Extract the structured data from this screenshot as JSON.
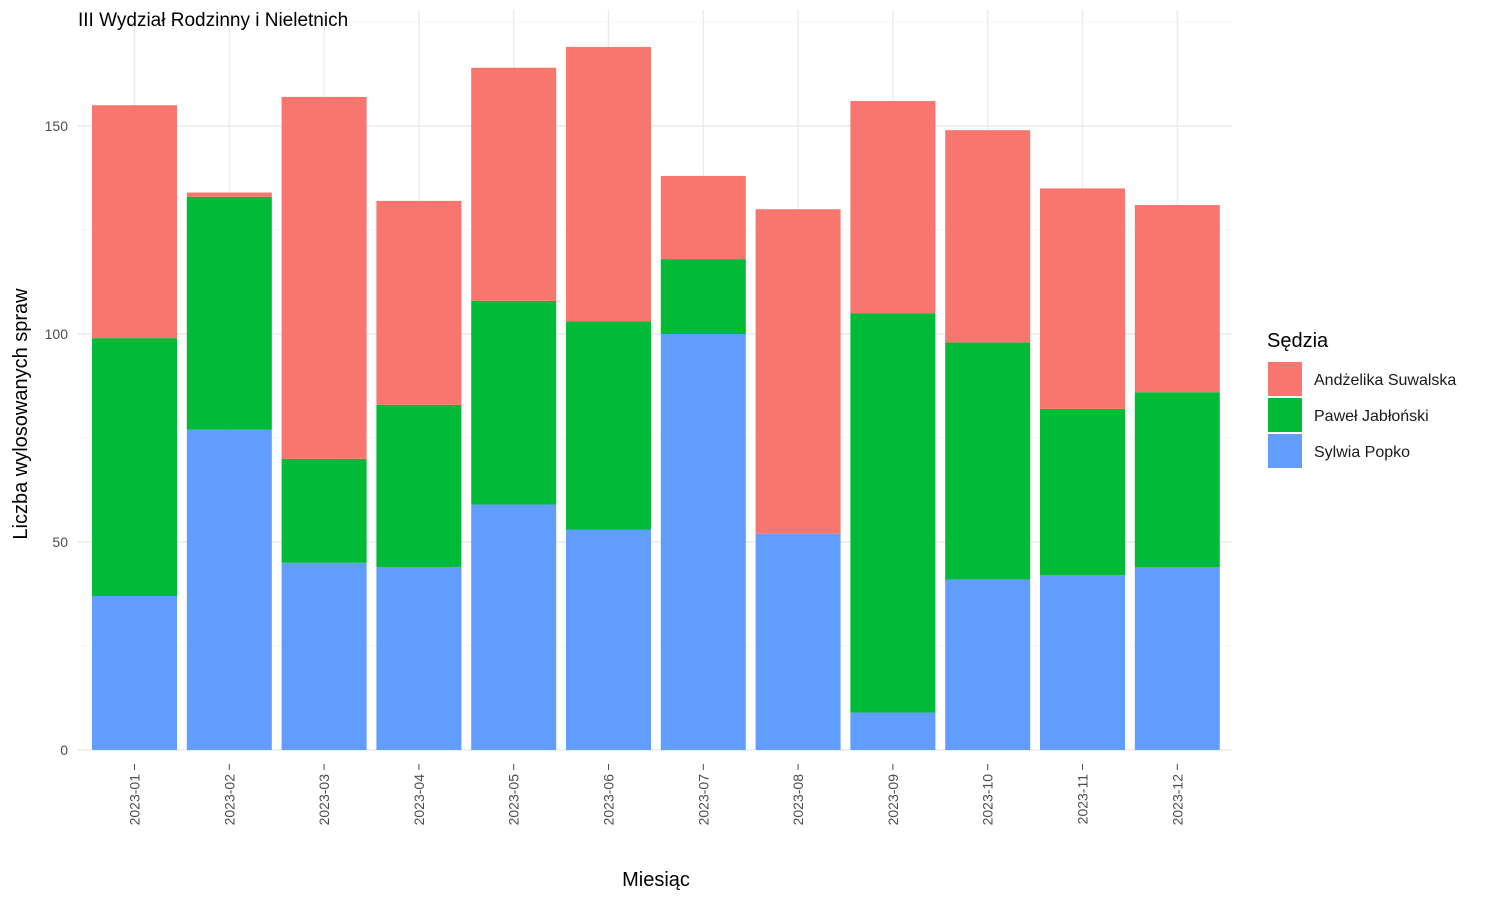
{
  "chart_data": {
    "type": "bar",
    "stacked": true,
    "title": "III Wydział Rodzinny i Nieletnich",
    "xlabel": "Miesiąc",
    "ylabel": "Liczba wylosowanych spraw",
    "legend_title": "Sędzia",
    "legend_position": "right",
    "grid": true,
    "ylim": [
      0,
      175
    ],
    "yticks": [
      0,
      50,
      100,
      150
    ],
    "categories": [
      "2023-01",
      "2023-02",
      "2023-03",
      "2023-04",
      "2023-05",
      "2023-06",
      "2023-07",
      "2023-08",
      "2023-09",
      "2023-10",
      "2023-11",
      "2023-12"
    ],
    "series": [
      {
        "name": "Sylwia Popko",
        "color": "#619CFF",
        "values": [
          37,
          77,
          45,
          44,
          59,
          53,
          100,
          52,
          9,
          41,
          42,
          44
        ]
      },
      {
        "name": "Paweł Jabłoński",
        "color": "#00BA38",
        "values": [
          62,
          56,
          25,
          39,
          49,
          50,
          18,
          0,
          96,
          57,
          40,
          42
        ]
      },
      {
        "name": "Andżelika Suwalska",
        "color": "#F8766D",
        "values": [
          56,
          1,
          87,
          49,
          56,
          66,
          20,
          78,
          51,
          51,
          53,
          45
        ]
      }
    ],
    "legend_order": [
      "Andżelika Suwalska",
      "Paweł Jabłoński",
      "Sylwia Popko"
    ]
  }
}
